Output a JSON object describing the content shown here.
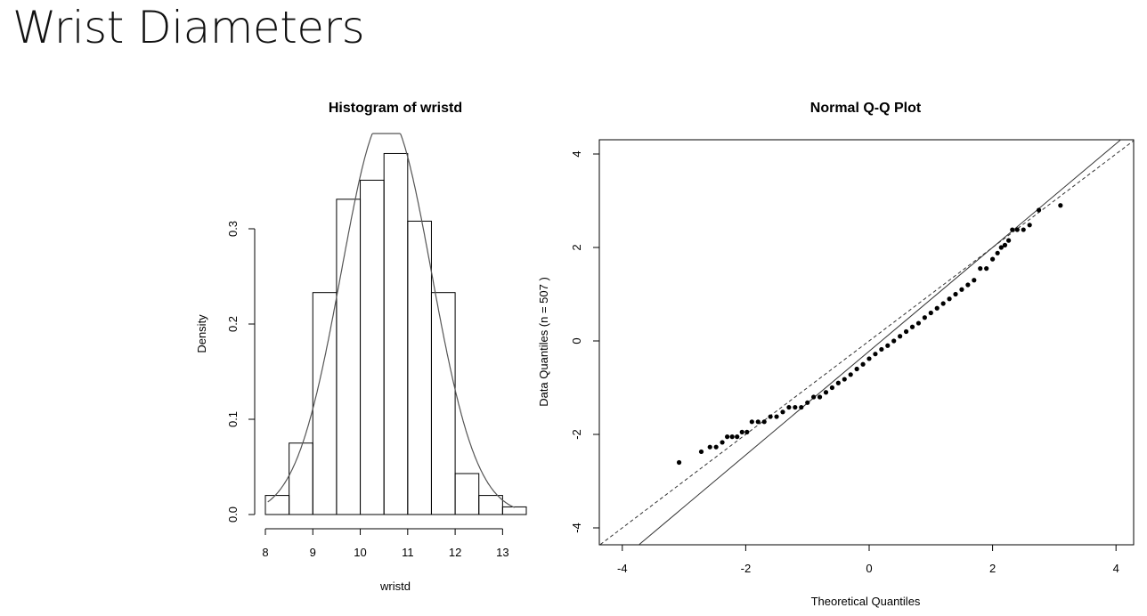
{
  "slide": {
    "title": "Wrist Diameters"
  },
  "chart_data": [
    {
      "type": "bar",
      "title": "Histogram of wristd",
      "xlabel": "wristd",
      "ylabel": "Density",
      "bin_edges": [
        8,
        8.5,
        9,
        9.5,
        10,
        10.5,
        11,
        11.5,
        12,
        12.5,
        13,
        13.5
      ],
      "values": [
        0.02,
        0.075,
        0.233,
        0.331,
        0.351,
        0.379,
        0.308,
        0.233,
        0.043,
        0.02,
        0.008
      ],
      "density_curve": {
        "mean": 10.55,
        "sd": 0.95
      },
      "xticks": [
        "8",
        "9",
        "10",
        "11",
        "12",
        "13"
      ],
      "yticks": [
        "0.0",
        "0.1",
        "0.2",
        "0.3"
      ],
      "xlim": [
        8,
        13.5
      ],
      "ylim": [
        0,
        0.4
      ],
      "grid": false
    },
    {
      "type": "scatter",
      "title": "Normal Q-Q Plot",
      "xlabel": "Theoretical Quantiles",
      "ylabel": "Data Quantiles (n = 507 )",
      "n": 507,
      "xticks": [
        "-4",
        "-2",
        "0",
        "2",
        "4"
      ],
      "yticks": [
        "-4",
        "-2",
        "0",
        "2",
        "4"
      ],
      "xlim": [
        -4.2,
        4.3
      ],
      "ylim": [
        -4.3,
        4.3
      ],
      "reference_lines": [
        {
          "style": "solid",
          "intercept": -0.22,
          "slope": 1.11
        },
        {
          "style": "dashed",
          "intercept": 0.0,
          "slope": 1.0
        }
      ],
      "points": [
        [
          -3.08,
          -2.6
        ],
        [
          -2.72,
          -2.37
        ],
        [
          -2.58,
          -2.27
        ],
        [
          -2.48,
          -2.27
        ],
        [
          -2.38,
          -2.17
        ],
        [
          -2.3,
          -2.05
        ],
        [
          -2.22,
          -2.05
        ],
        [
          -2.14,
          -2.05
        ],
        [
          -2.06,
          -1.95
        ],
        [
          -1.98,
          -1.95
        ],
        [
          -1.9,
          -1.73
        ],
        [
          -1.8,
          -1.73
        ],
        [
          -1.7,
          -1.73
        ],
        [
          -1.6,
          -1.62
        ],
        [
          -1.5,
          -1.62
        ],
        [
          -1.4,
          -1.52
        ],
        [
          -1.3,
          -1.42
        ],
        [
          -1.2,
          -1.42
        ],
        [
          -1.1,
          -1.42
        ],
        [
          -1.0,
          -1.32
        ],
        [
          -0.9,
          -1.2
        ],
        [
          -0.8,
          -1.2
        ],
        [
          -0.7,
          -1.1
        ],
        [
          -0.6,
          -1.0
        ],
        [
          -0.5,
          -0.9
        ],
        [
          -0.4,
          -0.82
        ],
        [
          -0.3,
          -0.72
        ],
        [
          -0.2,
          -0.6
        ],
        [
          -0.1,
          -0.5
        ],
        [
          0.0,
          -0.38
        ],
        [
          0.1,
          -0.28
        ],
        [
          0.2,
          -0.18
        ],
        [
          0.3,
          -0.1
        ],
        [
          0.4,
          0.0
        ],
        [
          0.5,
          0.1
        ],
        [
          0.6,
          0.2
        ],
        [
          0.7,
          0.3
        ],
        [
          0.8,
          0.38
        ],
        [
          0.9,
          0.5
        ],
        [
          1.0,
          0.6
        ],
        [
          1.1,
          0.7
        ],
        [
          1.2,
          0.8
        ],
        [
          1.3,
          0.9
        ],
        [
          1.4,
          1.0
        ],
        [
          1.5,
          1.1
        ],
        [
          1.6,
          1.2
        ],
        [
          1.7,
          1.3
        ],
        [
          1.8,
          1.55
        ],
        [
          1.9,
          1.55
        ],
        [
          2.0,
          1.75
        ],
        [
          2.08,
          1.88
        ],
        [
          2.14,
          2.0
        ],
        [
          2.2,
          2.05
        ],
        [
          2.26,
          2.15
        ],
        [
          2.32,
          2.38
        ],
        [
          2.4,
          2.38
        ],
        [
          2.5,
          2.38
        ],
        [
          2.6,
          2.48
        ],
        [
          2.75,
          2.8
        ],
        [
          3.1,
          2.9
        ]
      ],
      "grid": false
    }
  ]
}
